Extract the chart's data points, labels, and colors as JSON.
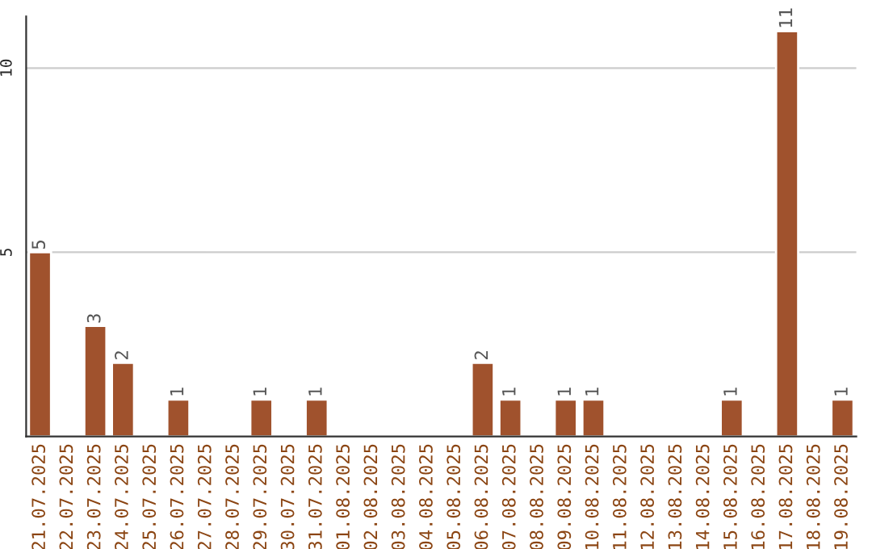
{
  "chart_data": {
    "type": "bar",
    "categories": [
      "21.07.2025",
      "22.07.2025",
      "23.07.2025",
      "24.07.2025",
      "25.07.2025",
      "26.07.2025",
      "27.07.2025",
      "28.07.2025",
      "29.07.2025",
      "30.07.2025",
      "31.07.2025",
      "01.08.2025",
      "02.08.2025",
      "03.08.2025",
      "04.08.2025",
      "05.08.2025",
      "06.08.2025",
      "07.08.2025",
      "08.08.2025",
      "09.08.2025",
      "10.08.2025",
      "11.08.2025",
      "12.08.2025",
      "13.08.2025",
      "14.08.2025",
      "15.08.2025",
      "16.08.2025",
      "17.08.2025",
      "18.08.2025",
      "19.08.2025"
    ],
    "values": [
      5,
      null,
      3,
      2,
      null,
      1,
      null,
      null,
      1,
      null,
      1,
      null,
      null,
      null,
      null,
      null,
      2,
      1,
      null,
      1,
      1,
      null,
      null,
      null,
      null,
      1,
      null,
      11,
      null,
      1
    ],
    "value_labels": [
      "5",
      null,
      "3",
      "2",
      null,
      "1",
      null,
      null,
      "1",
      null,
      "1",
      null,
      null,
      null,
      null,
      null,
      "2",
      "1",
      null,
      "1",
      "1",
      null,
      null,
      null,
      null,
      "1",
      null,
      "11",
      null,
      "1"
    ],
    "color": "#a0522d",
    "ylim": [
      0,
      11.4
    ],
    "yticks": [
      5,
      10
    ],
    "grid": "y",
    "legend": false
  }
}
